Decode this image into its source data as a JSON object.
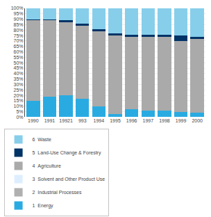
{
  "chart_data": {
    "type": "bar",
    "stacked": true,
    "categories": [
      "1990",
      "1991",
      "19921",
      "993",
      "1994",
      "1995",
      "1996",
      "1997",
      "1998",
      "1999",
      "2000"
    ],
    "series": [
      {
        "name": "1  Energy",
        "color": "#29ABE2",
        "values": [
          15,
          19,
          20,
          17,
          10,
          3,
          7,
          6,
          6,
          5,
          4
        ]
      },
      {
        "name": "2  Industrial Processes",
        "color": "#B0B0B0",
        "values": [
          0,
          0,
          0,
          0,
          0,
          0,
          0,
          0,
          0,
          0,
          0
        ]
      },
      {
        "name": "3  Solvent and Other Product Use",
        "color": "#DDEEFF",
        "values": [
          0,
          0,
          0,
          0,
          0,
          0,
          0,
          0,
          0,
          0,
          0
        ]
      },
      {
        "name": "4  Agriculture",
        "color": "#AAAAAA",
        "values": [
          74,
          70,
          67,
          67,
          69,
          72,
          67,
          68,
          68,
          65,
          68
        ]
      },
      {
        "name": "5  Land-Use Change & Forestry",
        "color": "#003366",
        "values": [
          1,
          1,
          2,
          2,
          2,
          2,
          2,
          2,
          2,
          5,
          2
        ]
      },
      {
        "name": "6  Waste",
        "color": "#87CEEB",
        "values": [
          10,
          10,
          11,
          14,
          19,
          23,
          24,
          24,
          24,
          25,
          26
        ]
      }
    ],
    "ylim": [
      0,
      100
    ],
    "yticks": [
      {
        "value": 0,
        "label": "0%"
      },
      {
        "value": 5,
        "label": "5%"
      },
      {
        "value": 10,
        "label": "10%"
      },
      {
        "value": 15,
        "label": "15%"
      },
      {
        "value": 20,
        "label": "20%"
      },
      {
        "value": 25,
        "label": "25%"
      },
      {
        "value": 30,
        "label": "30%"
      },
      {
        "value": 35,
        "label": "35%"
      },
      {
        "value": 40,
        "label": "40%"
      },
      {
        "value": 45,
        "label": "45%"
      },
      {
        "value": 50,
        "label": "50%"
      },
      {
        "value": 55,
        "label": "55%"
      },
      {
        "value": 60,
        "label": "60%"
      },
      {
        "value": 65,
        "label": "65%"
      },
      {
        "value": 70,
        "label": "70%"
      },
      {
        "value": 75,
        "label": "75%"
      },
      {
        "value": 80,
        "label": "80%"
      },
      {
        "value": 85,
        "label": "85%"
      },
      {
        "value": 90,
        "label": "90%"
      },
      {
        "value": 95,
        "label": "95%"
      },
      {
        "value": 100,
        "label": "100%"
      }
    ],
    "grid": true,
    "legend": "bottom"
  }
}
